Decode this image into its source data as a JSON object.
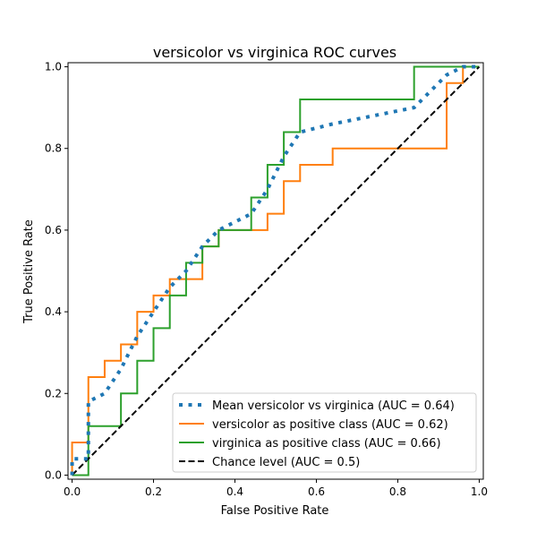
{
  "chart_data": {
    "type": "line",
    "title": "versicolor vs virginica ROC curves",
    "xlabel": "False Positive Rate",
    "ylabel": "True Positive Rate",
    "xlim": [
      -0.01,
      1.01
    ],
    "ylim": [
      -0.01,
      1.01
    ],
    "xticks": [
      "0.0",
      "0.2",
      "0.4",
      "0.6",
      "0.8",
      "1.0"
    ],
    "yticks": [
      "0.0",
      "0.2",
      "0.4",
      "0.6",
      "0.8",
      "1.0"
    ],
    "grid": false,
    "legend_position": "lower-right",
    "series": [
      {
        "name": "Mean versicolor vs virginica (AUC = 0.64)",
        "color": "#1f77b4",
        "style": "dotted",
        "x": [
          0,
          0,
          0.04,
          0.04,
          0.08,
          0.12,
          0.16,
          0.2,
          0.24,
          0.28,
          0.32,
          0.36,
          0.44,
          0.48,
          0.52,
          0.56,
          0.64,
          0.84,
          0.92,
          0.96,
          1.0
        ],
        "y": [
          0,
          0.04,
          0.04,
          0.18,
          0.2,
          0.26,
          0.34,
          0.4,
          0.46,
          0.5,
          0.56,
          0.6,
          0.64,
          0.7,
          0.78,
          0.84,
          0.86,
          0.9,
          0.98,
          1.0,
          1.0
        ]
      },
      {
        "name": "versicolor as positive class (AUC = 0.62)",
        "color": "#ff7f0e",
        "style": "solid",
        "x": [
          0,
          0,
          0.04,
          0.04,
          0.08,
          0.08,
          0.12,
          0.12,
          0.16,
          0.16,
          0.2,
          0.2,
          0.24,
          0.24,
          0.32,
          0.32,
          0.36,
          0.36,
          0.48,
          0.48,
          0.52,
          0.52,
          0.56,
          0.56,
          0.64,
          0.64,
          0.92,
          0.92,
          0.96,
          0.96,
          1.0
        ],
        "y": [
          0,
          0.08,
          0.08,
          0.24,
          0.24,
          0.28,
          0.28,
          0.32,
          0.32,
          0.4,
          0.4,
          0.44,
          0.44,
          0.48,
          0.48,
          0.56,
          0.56,
          0.6,
          0.6,
          0.64,
          0.64,
          0.72,
          0.72,
          0.76,
          0.76,
          0.8,
          0.8,
          0.96,
          0.96,
          1.0,
          1.0
        ]
      },
      {
        "name": "virginica as positive class (AUC = 0.66)",
        "color": "#2ca02c",
        "style": "solid",
        "x": [
          0,
          0.04,
          0.04,
          0.12,
          0.12,
          0.16,
          0.16,
          0.2,
          0.2,
          0.24,
          0.24,
          0.28,
          0.28,
          0.32,
          0.32,
          0.36,
          0.36,
          0.44,
          0.44,
          0.48,
          0.48,
          0.52,
          0.52,
          0.56,
          0.56,
          0.84,
          0.84,
          1.0
        ],
        "y": [
          0,
          0,
          0.12,
          0.12,
          0.2,
          0.2,
          0.28,
          0.28,
          0.36,
          0.36,
          0.44,
          0.44,
          0.52,
          0.52,
          0.56,
          0.56,
          0.6,
          0.6,
          0.68,
          0.68,
          0.76,
          0.76,
          0.84,
          0.84,
          0.92,
          0.92,
          1.0,
          1.0
        ]
      },
      {
        "name": "Chance level (AUC = 0.5)",
        "color": "#000000",
        "style": "dashed",
        "x": [
          0,
          1
        ],
        "y": [
          0,
          1
        ]
      }
    ]
  }
}
